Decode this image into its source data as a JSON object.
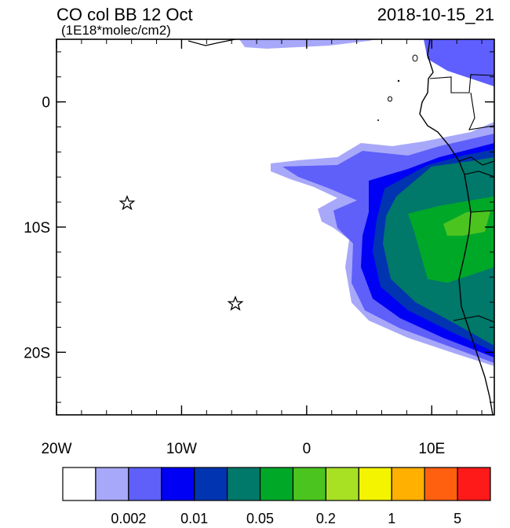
{
  "header": {
    "title": "CO col BB 12 Oct",
    "units": "(1E18*molec/cm2)",
    "valid_time": "2018-10-15_21"
  },
  "axes": {
    "x_ticks": [
      {
        "value": -20,
        "label": "20W"
      },
      {
        "value": -10,
        "label": "10W"
      },
      {
        "value": 0,
        "label": "0"
      },
      {
        "value": 10,
        "label": "10E"
      }
    ],
    "y_ticks": [
      {
        "value": 0,
        "label": "0"
      },
      {
        "value": -10,
        "label": "10S"
      },
      {
        "value": -20,
        "label": "20S"
      }
    ]
  },
  "colorbar": {
    "colors": [
      "#ffffff",
      "#a8a8fa",
      "#5f5ffa",
      "#0000f5",
      "#0034b0",
      "#00786a",
      "#00a828",
      "#4cc420",
      "#a8e024",
      "#f4f400",
      "#ffb000",
      "#ff6010",
      "#ff1a1a"
    ],
    "labels": [
      "0.002",
      "0.01",
      "0.05",
      "0.2",
      "1",
      "5"
    ]
  }
}
